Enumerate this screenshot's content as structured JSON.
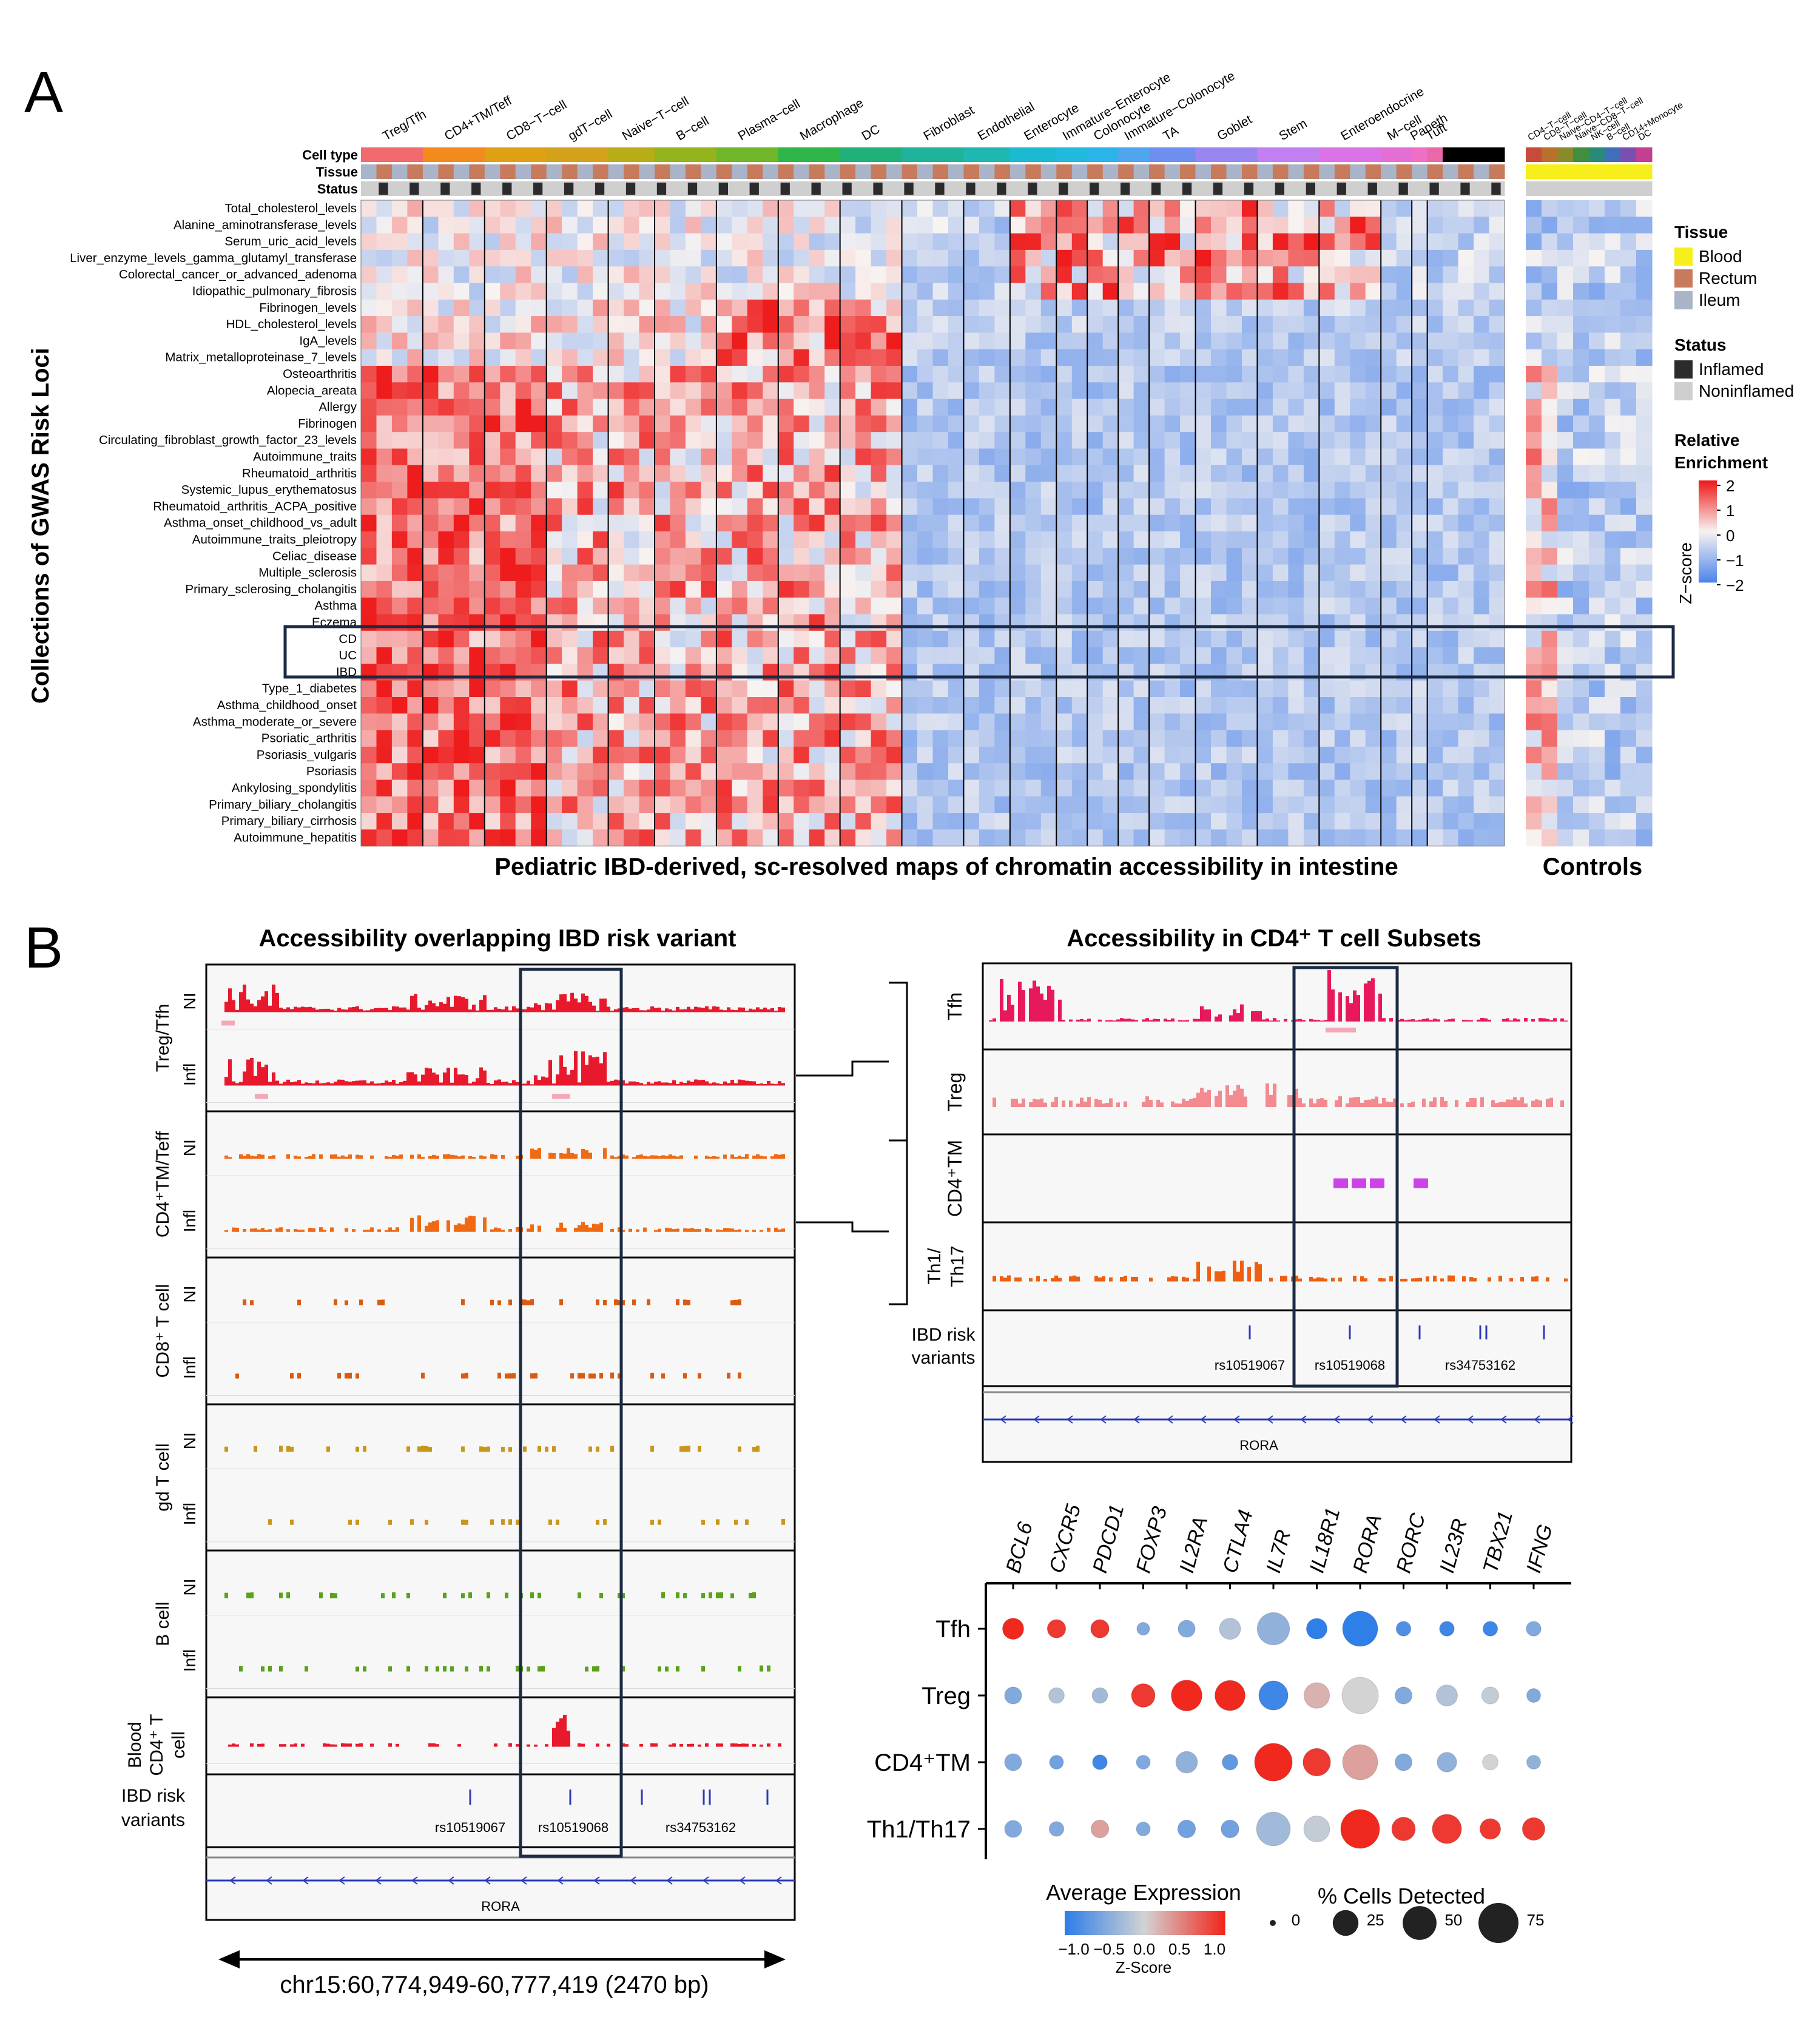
{
  "panel_a": {
    "label": "A",
    "y_title": "Collections of GWAS Risk Loci",
    "x_title": "Pediatric IBD-derived, sc-resolved maps of chromatin accessibility in intestine",
    "controls_title": "Controls",
    "annotation_rows": [
      "Cell type",
      "Tissue",
      "Status"
    ],
    "cell_types": [
      "Treg/Tfh",
      "CD4+TM/Teff",
      "CD8−T−cell",
      "gdT−cell",
      "Naive−T−cell",
      "B−cell",
      "Plasma−cell",
      "Macrophage",
      "DC",
      "Fibroblast",
      "Endothelial",
      "Enterocyte",
      "Immature−Enterocyte",
      "Colonocyte",
      "Immature−Colonocyte",
      "TA",
      "Goblet",
      "Stem",
      "Enteroendocrine",
      "M−cell",
      "Paneth",
      "Tuft"
    ],
    "control_types": [
      "CD4−T−cell",
      "CD8−T−cell",
      "Naive−CD4−T−cell",
      "Naive−CD8−T−cell",
      "NK−cell",
      "B−cell",
      "CD14+Monocyte",
      "DC"
    ],
    "traits": [
      "Total_cholesterol_levels",
      "Alanine_aminotransferase_levels",
      "Serum_uric_acid_levels",
      "Liver_enzyme_levels_gamma_glutamyl_transferase",
      "Colorectal_cancer_or_advanced_adenoma",
      "Idiopathic_pulmonary_fibrosis",
      "Fibrinogen_levels",
      "HDL_cholesterol_levels",
      "IgA_levels",
      "Matrix_metalloproteinase_7_levels",
      "Osteoarthritis",
      "Alopecia_areata",
      "Allergy",
      "Fibrinogen",
      "Circulating_fibroblast_growth_factor_23_levels",
      "Autoimmune_traits",
      "Rheumatoid_arthritis",
      "Systemic_lupus_erythematosus",
      "Rheumatoid_arthritis_ACPA_positive",
      "Asthma_onset_childhood_vs_adult",
      "Autoimmune_traits_pleiotropy",
      "Celiac_disease",
      "Multiple_sclerosis",
      "Primary_sclerosing_cholangitis",
      "Asthma",
      "Eczema",
      "CD",
      "UC",
      "IBD",
      "Type_1_diabetes",
      "Asthma_childhood_onset",
      "Asthma_moderate_or_severe",
      "Psoriatic_arthritis",
      "Psoriasis_vulgaris",
      "Psoriasis",
      "Ankylosing_spondylitis",
      "Primary_biliary_cholangitis",
      "Primary_biliary_cirrhosis",
      "Autoimmune_hepatitis"
    ],
    "legend": {
      "tissue_title": "Tissue",
      "tissue_items": [
        {
          "label": "Blood",
          "color": "#f7ef1b"
        },
        {
          "label": "Rectum",
          "color": "#c77b5c"
        },
        {
          "label": "Ileum",
          "color": "#a9b4c8"
        }
      ],
      "status_title": "Status",
      "status_items": [
        {
          "label": "Inflamed",
          "color": "#2b2b2b"
        },
        {
          "label": "Noninflamed",
          "color": "#cfcfcf"
        }
      ],
      "enrich_title_1": "Relative",
      "enrich_title_2": "Enrichment",
      "scale_label": "Z−score",
      "scale_ticks": [
        "2",
        "1",
        "0",
        "−1",
        "−2"
      ]
    }
  },
  "panel_b": {
    "label": "B",
    "left_title": "Accessibility overlapping IBD risk variant",
    "right_title": "Accessibility in CD4⁺ T cell Subsets",
    "left_groups": [
      {
        "label": "Treg/Tfh",
        "tracks": [
          "NI",
          "Infl"
        ]
      },
      {
        "label": "CD4⁺TM/Teff",
        "tracks": [
          "NI",
          "Infl"
        ]
      },
      {
        "label": "CD8⁺ T cell",
        "tracks": [
          "NI",
          "Infl"
        ]
      },
      {
        "label": "gd T cell",
        "tracks": [
          "NI",
          "Infl"
        ]
      },
      {
        "label": "B cell",
        "tracks": [
          "NI",
          "Infl"
        ]
      },
      {
        "label": "Blood CD4⁺ T cell",
        "tracks": []
      }
    ],
    "right_groups": [
      "Tfh",
      "Treg",
      "CD4⁺TM",
      "Th1/ Th17"
    ],
    "variant_label": "IBD risk variants",
    "snps": [
      "rs10519067",
      "rs10519068",
      "rs34753162"
    ],
    "gene": "RORA",
    "coordinate": "chr15:60,774,949-60,777,419 (2470 bp)"
  },
  "dot_plot": {
    "genes": [
      "BCL6",
      "CXCR5",
      "PDCD1",
      "FOXP3",
      "IL2RA",
      "CTLA4",
      "IL7R",
      "IL18R1",
      "RORA",
      "RORC",
      "IL23R",
      "TBX21",
      "IFNG"
    ],
    "groups": [
      "Tfh",
      "Treg",
      "CD4⁺TM",
      "Th1/Th17"
    ],
    "avg_expr": [
      [
        1.0,
        0.9,
        0.9,
        -0.5,
        -0.5,
        -0.2,
        -0.4,
        -1.0,
        -1.0,
        -0.8,
        -0.9,
        -0.9,
        -0.5
      ],
      [
        -0.5,
        -0.2,
        -0.3,
        0.9,
        1.0,
        1.0,
        -0.9,
        0.2,
        0.0,
        -0.5,
        -0.2,
        -0.1,
        -0.5
      ],
      [
        -0.5,
        -0.6,
        -0.9,
        -0.5,
        -0.4,
        -0.7,
        1.0,
        0.9,
        0.3,
        -0.5,
        -0.4,
        0.0,
        -0.4
      ],
      [
        -0.5,
        -0.5,
        0.3,
        -0.5,
        -0.6,
        -0.6,
        -0.3,
        -0.1,
        1.0,
        0.9,
        0.9,
        0.9,
        0.9
      ]
    ],
    "pct": [
      [
        15,
        10,
        10,
        3,
        8,
        15,
        45,
        14,
        55,
        5,
        5,
        5,
        5
      ],
      [
        8,
        6,
        6,
        20,
        40,
        38,
        35,
        25,
        60,
        8,
        15,
        8,
        4
      ],
      [
        8,
        4,
        5,
        4,
        16,
        6,
        65,
        30,
        55,
        8,
        12,
        6,
        4
      ],
      [
        8,
        5,
        9,
        4,
        9,
        9,
        50,
        26,
        70,
        20,
        35,
        14,
        18
      ]
    ],
    "legend_expr_title": "Average Expression",
    "legend_expr_ticks": [
      "−1.0",
      "−0.5",
      "0.0",
      "0.5",
      "1.0"
    ],
    "legend_expr_sub": "Z-Score",
    "legend_pct_title": "% Cells Detected",
    "legend_pct_ticks": [
      "0",
      "25",
      "50",
      "75"
    ],
    "colors": {
      "low": "#2f7fe8",
      "mid": "#d3d3d3",
      "high": "#f0281e"
    }
  }
}
